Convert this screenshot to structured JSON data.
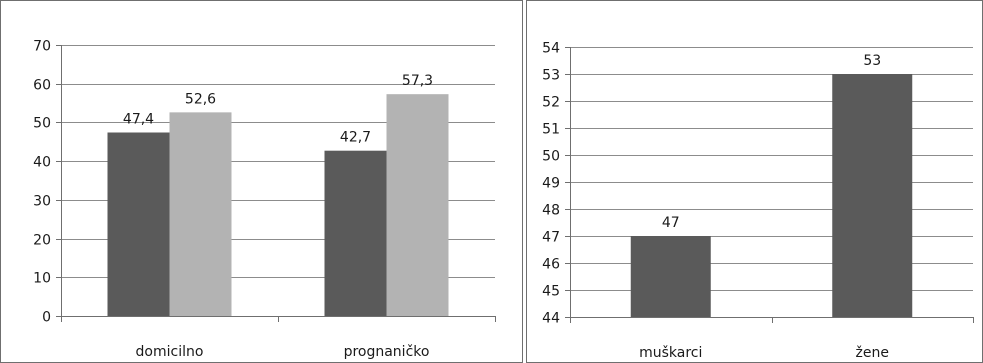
{
  "chart_data": [
    {
      "type": "bar",
      "categories": [
        "domicilno",
        "prognaničko"
      ],
      "series": [
        {
          "values": [
            47.4,
            42.7
          ],
          "labels": [
            "47,4",
            "42,7"
          ],
          "color": "#5a5a5a"
        },
        {
          "values": [
            52.6,
            57.3
          ],
          "labels": [
            "52,6",
            "57,3"
          ],
          "color": "#b3b3b3"
        }
      ],
      "ylim": [
        0,
        70
      ],
      "yticks": [
        0,
        10,
        20,
        30,
        40,
        50,
        60,
        70
      ],
      "grid": true,
      "legend": "none"
    },
    {
      "type": "bar",
      "categories": [
        "muškarci",
        "žene"
      ],
      "series": [
        {
          "values": [
            47,
            53
          ],
          "labels": [
            "47",
            "53"
          ],
          "color": "#5a5a5a"
        }
      ],
      "ylim": [
        44,
        54
      ],
      "yticks": [
        44,
        45,
        46,
        47,
        48,
        49,
        50,
        51,
        52,
        53,
        54
      ],
      "grid": true,
      "legend": "none"
    }
  ]
}
